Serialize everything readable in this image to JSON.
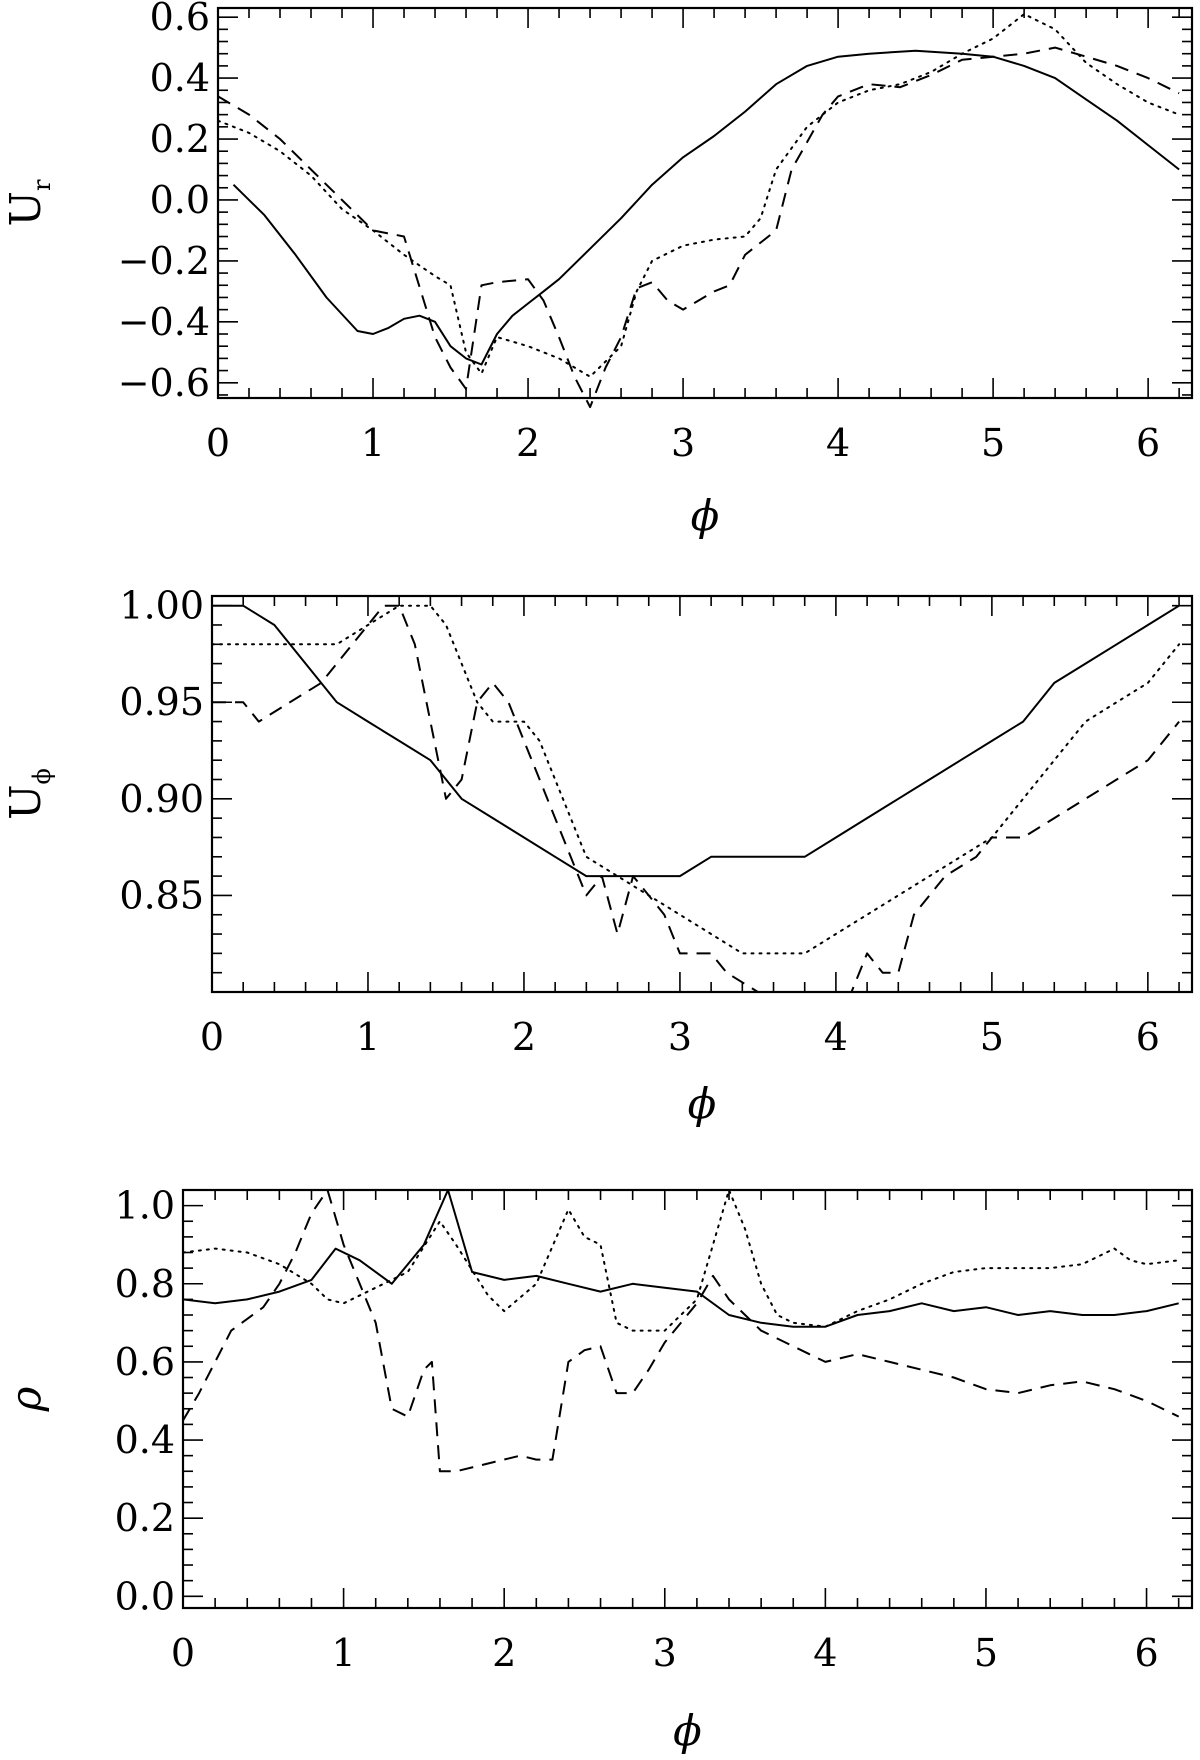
{
  "chart_data": [
    {
      "type": "line",
      "xlabel": "ϕ",
      "ylabel": "U",
      "ylabel_sub": "r",
      "xlim": [
        0,
        6.283
      ],
      "ylim": [
        -0.65,
        0.63
      ],
      "xticks": [
        0,
        1,
        2,
        3,
        4,
        5,
        6
      ],
      "xtick_labels": [
        "0",
        "1",
        "2",
        "3",
        "4",
        "5",
        "6"
      ],
      "yticks": [
        -0.6,
        -0.4,
        -0.2,
        0.0,
        0.2,
        0.4,
        0.6
      ],
      "ytick_labels": [
        "−0.6",
        "−0.4",
        "−0.2",
        "0.0",
        "0.2",
        "0.4",
        "0.6"
      ],
      "series": [
        {
          "style": "solid",
          "x": [
            0.1,
            0.3,
            0.5,
            0.7,
            0.9,
            1.0,
            1.1,
            1.2,
            1.3,
            1.4,
            1.5,
            1.6,
            1.7,
            1.8,
            1.9,
            2.0,
            2.1,
            2.2,
            2.4,
            2.6,
            2.8,
            3.0,
            3.2,
            3.4,
            3.6,
            3.8,
            4.0,
            4.2,
            4.5,
            4.8,
            5.0,
            5.2,
            5.4,
            5.6,
            5.8,
            6.0,
            6.2
          ],
          "y": [
            0.05,
            -0.05,
            -0.18,
            -0.32,
            -0.43,
            -0.44,
            -0.42,
            -0.39,
            -0.38,
            -0.4,
            -0.48,
            -0.52,
            -0.54,
            -0.44,
            -0.38,
            -0.34,
            -0.3,
            -0.26,
            -0.16,
            -0.06,
            0.05,
            0.14,
            0.21,
            0.29,
            0.38,
            0.44,
            0.47,
            0.48,
            0.49,
            0.48,
            0.47,
            0.44,
            0.4,
            0.33,
            0.26,
            0.18,
            0.1
          ]
        },
        {
          "style": "dashed",
          "x": [
            0.0,
            0.2,
            0.4,
            0.6,
            0.8,
            1.0,
            1.2,
            1.4,
            1.5,
            1.6,
            1.7,
            1.8,
            2.0,
            2.1,
            2.2,
            2.3,
            2.4,
            2.5,
            2.6,
            2.7,
            2.8,
            2.9,
            3.0,
            3.2,
            3.3,
            3.4,
            3.6,
            3.7,
            3.9,
            4.0,
            4.2,
            4.4,
            4.6,
            4.8,
            5.0,
            5.2,
            5.4,
            5.6,
            5.8,
            6.0,
            6.2
          ],
          "y": [
            0.34,
            0.28,
            0.2,
            0.1,
            0.0,
            -0.1,
            -0.12,
            -0.45,
            -0.55,
            -0.62,
            -0.28,
            -0.27,
            -0.26,
            -0.33,
            -0.45,
            -0.58,
            -0.68,
            -0.55,
            -0.45,
            -0.29,
            -0.27,
            -0.33,
            -0.36,
            -0.3,
            -0.28,
            -0.18,
            -0.1,
            0.1,
            0.28,
            0.34,
            0.38,
            0.37,
            0.41,
            0.46,
            0.47,
            0.48,
            0.5,
            0.47,
            0.44,
            0.4,
            0.35
          ]
        },
        {
          "style": "dotted",
          "x": [
            0.0,
            0.2,
            0.4,
            0.6,
            0.8,
            1.0,
            1.2,
            1.4,
            1.5,
            1.6,
            1.7,
            1.8,
            2.0,
            2.2,
            2.4,
            2.6,
            2.7,
            2.8,
            3.0,
            3.2,
            3.4,
            3.5,
            3.6,
            3.8,
            4.0,
            4.2,
            4.4,
            4.6,
            4.8,
            5.0,
            5.2,
            5.4,
            5.6,
            5.8,
            6.0,
            6.2
          ],
          "y": [
            0.26,
            0.22,
            0.16,
            0.08,
            -0.03,
            -0.1,
            -0.18,
            -0.25,
            -0.28,
            -0.5,
            -0.57,
            -0.45,
            -0.48,
            -0.52,
            -0.58,
            -0.48,
            -0.3,
            -0.2,
            -0.15,
            -0.13,
            -0.12,
            -0.06,
            0.1,
            0.24,
            0.32,
            0.36,
            0.38,
            0.42,
            0.48,
            0.53,
            0.61,
            0.56,
            0.45,
            0.38,
            0.32,
            0.28
          ]
        }
      ]
    },
    {
      "type": "line",
      "xlabel": "ϕ",
      "ylabel": "U",
      "ylabel_sub": "ϕ",
      "xlim": [
        0,
        6.283
      ],
      "ylim": [
        0.8,
        1.005
      ],
      "xticks": [
        0,
        1,
        2,
        3,
        4,
        5,
        6
      ],
      "xtick_labels": [
        "0",
        "1",
        "2",
        "3",
        "4",
        "5",
        "6"
      ],
      "yticks": [
        0.85,
        0.9,
        0.95,
        1.0
      ],
      "ytick_labels": [
        "0.85",
        "0.90",
        "0.95",
        "1.00"
      ],
      "series": [
        {
          "style": "solid",
          "x": [
            0.0,
            0.2,
            0.4,
            0.6,
            0.8,
            1.0,
            1.2,
            1.4,
            1.6,
            1.8,
            2.0,
            2.2,
            2.4,
            2.6,
            2.8,
            3.0,
            3.2,
            3.4,
            3.6,
            3.8,
            4.0,
            4.2,
            4.4,
            4.6,
            4.8,
            5.0,
            5.2,
            5.4,
            5.6,
            5.8,
            6.0,
            6.2
          ],
          "y": [
            1.0,
            1.0,
            0.99,
            0.97,
            0.95,
            0.94,
            0.93,
            0.92,
            0.9,
            0.89,
            0.88,
            0.87,
            0.86,
            0.86,
            0.86,
            0.86,
            0.87,
            0.87,
            0.87,
            0.87,
            0.88,
            0.89,
            0.9,
            0.91,
            0.92,
            0.93,
            0.94,
            0.96,
            0.97,
            0.98,
            0.99,
            1.0
          ]
        },
        {
          "style": "dashed",
          "x": [
            0.0,
            0.2,
            0.3,
            0.5,
            0.7,
            0.9,
            1.0,
            1.1,
            1.2,
            1.3,
            1.4,
            1.5,
            1.6,
            1.7,
            1.8,
            1.9,
            2.0,
            2.1,
            2.2,
            2.3,
            2.4,
            2.5,
            2.6,
            2.7,
            2.8,
            2.9,
            3.0,
            3.2,
            3.3,
            3.5,
            3.7,
            3.9,
            4.1,
            4.2,
            4.3,
            4.4,
            4.5,
            4.7,
            4.9,
            5.0,
            5.2,
            5.4,
            5.6,
            5.8,
            6.0,
            6.2
          ],
          "y": [
            0.95,
            0.95,
            0.94,
            0.95,
            0.96,
            0.98,
            0.99,
            1.0,
            1.0,
            0.98,
            0.94,
            0.9,
            0.91,
            0.95,
            0.96,
            0.95,
            0.93,
            0.91,
            0.89,
            0.87,
            0.85,
            0.86,
            0.83,
            0.86,
            0.85,
            0.84,
            0.82,
            0.82,
            0.81,
            0.8,
            0.8,
            0.8,
            0.8,
            0.82,
            0.81,
            0.81,
            0.84,
            0.86,
            0.87,
            0.88,
            0.88,
            0.89,
            0.9,
            0.91,
            0.92,
            0.94
          ]
        },
        {
          "style": "dotted",
          "x": [
            0.0,
            0.2,
            0.4,
            0.6,
            0.8,
            1.0,
            1.2,
            1.3,
            1.4,
            1.5,
            1.6,
            1.7,
            1.8,
            1.9,
            2.0,
            2.1,
            2.2,
            2.3,
            2.4,
            2.6,
            2.8,
            3.0,
            3.2,
            3.4,
            3.6,
            3.8,
            4.0,
            4.2,
            4.4,
            4.6,
            4.8,
            5.0,
            5.2,
            5.4,
            5.6,
            5.8,
            6.0,
            6.2
          ],
          "y": [
            0.98,
            0.98,
            0.98,
            0.98,
            0.98,
            0.99,
            1.0,
            1.0,
            1.0,
            0.99,
            0.97,
            0.95,
            0.94,
            0.94,
            0.94,
            0.93,
            0.91,
            0.89,
            0.87,
            0.86,
            0.85,
            0.84,
            0.83,
            0.82,
            0.82,
            0.82,
            0.83,
            0.84,
            0.85,
            0.86,
            0.87,
            0.88,
            0.9,
            0.92,
            0.94,
            0.95,
            0.96,
            0.98
          ]
        }
      ]
    },
    {
      "type": "line",
      "xlabel": "ϕ",
      "ylabel": "ρ",
      "ylabel_sub": "",
      "xlim": [
        0,
        6.283
      ],
      "ylim": [
        -0.03,
        1.04
      ],
      "xticks": [
        0,
        1,
        2,
        3,
        4,
        5,
        6
      ],
      "xtick_labels": [
        "0",
        "1",
        "2",
        "3",
        "4",
        "5",
        "6"
      ],
      "yticks": [
        0.0,
        0.2,
        0.4,
        0.6,
        0.8,
        1.0
      ],
      "ytick_labels": [
        "0.0",
        "0.2",
        "0.4",
        "0.6",
        "0.8",
        "1.0"
      ],
      "series": [
        {
          "style": "solid",
          "x": [
            0.0,
            0.2,
            0.4,
            0.6,
            0.8,
            0.95,
            1.1,
            1.3,
            1.5,
            1.65,
            1.8,
            2.0,
            2.2,
            2.4,
            2.6,
            2.8,
            3.0,
            3.2,
            3.4,
            3.6,
            3.8,
            4.0,
            4.2,
            4.4,
            4.6,
            4.8,
            5.0,
            5.2,
            5.4,
            5.6,
            5.8,
            6.0,
            6.2
          ],
          "y": [
            0.76,
            0.75,
            0.76,
            0.78,
            0.81,
            0.89,
            0.86,
            0.8,
            0.9,
            1.04,
            0.83,
            0.81,
            0.82,
            0.8,
            0.78,
            0.8,
            0.79,
            0.78,
            0.72,
            0.7,
            0.69,
            0.69,
            0.72,
            0.73,
            0.75,
            0.73,
            0.74,
            0.72,
            0.73,
            0.72,
            0.72,
            0.73,
            0.75
          ]
        },
        {
          "style": "dashed",
          "x": [
            0.0,
            0.1,
            0.2,
            0.3,
            0.4,
            0.5,
            0.6,
            0.7,
            0.8,
            0.9,
            1.0,
            1.1,
            1.2,
            1.3,
            1.4,
            1.5,
            1.55,
            1.6,
            1.7,
            1.9,
            2.1,
            2.2,
            2.3,
            2.4,
            2.5,
            2.6,
            2.7,
            2.8,
            2.9,
            3.0,
            3.2,
            3.3,
            3.4,
            3.5,
            3.6,
            3.8,
            4.0,
            4.2,
            4.4,
            4.6,
            4.8,
            5.0,
            5.2,
            5.4,
            5.6,
            5.8,
            6.0,
            6.2
          ],
          "y": [
            0.45,
            0.52,
            0.6,
            0.68,
            0.71,
            0.74,
            0.8,
            0.88,
            0.98,
            1.04,
            0.9,
            0.8,
            0.7,
            0.48,
            0.46,
            0.58,
            0.6,
            0.32,
            0.32,
            0.34,
            0.36,
            0.35,
            0.35,
            0.6,
            0.63,
            0.64,
            0.52,
            0.52,
            0.58,
            0.65,
            0.75,
            0.82,
            0.76,
            0.72,
            0.68,
            0.64,
            0.6,
            0.62,
            0.6,
            0.58,
            0.56,
            0.53,
            0.52,
            0.54,
            0.55,
            0.53,
            0.5,
            0.46
          ]
        },
        {
          "style": "dotted",
          "x": [
            0.0,
            0.2,
            0.4,
            0.6,
            0.8,
            0.9,
            1.0,
            1.2,
            1.4,
            1.6,
            1.7,
            1.9,
            2.0,
            2.2,
            2.4,
            2.5,
            2.6,
            2.7,
            2.8,
            3.0,
            3.2,
            3.3,
            3.4,
            3.5,
            3.6,
            3.7,
            3.8,
            4.0,
            4.2,
            4.4,
            4.6,
            4.8,
            5.0,
            5.2,
            5.4,
            5.6,
            5.8,
            5.9,
            6.0,
            6.2
          ],
          "y": [
            0.88,
            0.89,
            0.88,
            0.85,
            0.8,
            0.76,
            0.75,
            0.79,
            0.83,
            0.96,
            0.9,
            0.77,
            0.73,
            0.8,
            0.99,
            0.92,
            0.9,
            0.7,
            0.68,
            0.68,
            0.76,
            0.9,
            1.04,
            0.94,
            0.8,
            0.72,
            0.7,
            0.69,
            0.73,
            0.76,
            0.8,
            0.83,
            0.84,
            0.84,
            0.84,
            0.85,
            0.89,
            0.86,
            0.85,
            0.86
          ]
        }
      ]
    }
  ]
}
